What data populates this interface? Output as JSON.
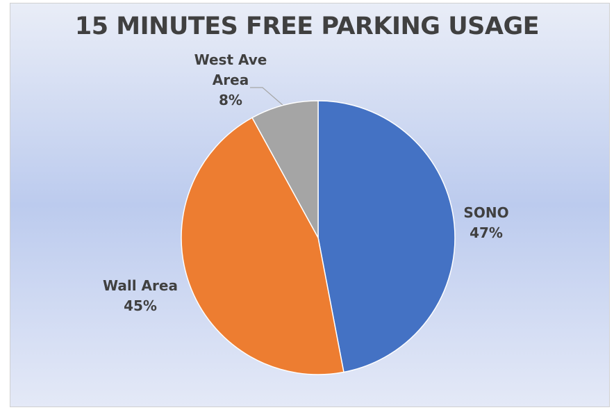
{
  "chart_data": {
    "type": "pie",
    "title": "15 MINUTES FREE PARKING USAGE",
    "categories": [
      "SONO",
      "Wall Area",
      "West Ave Area"
    ],
    "values": [
      47,
      45,
      8
    ],
    "value_labels": [
      "47%",
      "45%",
      "8%"
    ],
    "colors": [
      "#4472c4",
      "#ed7d31",
      "#a5a5a5"
    ]
  }
}
